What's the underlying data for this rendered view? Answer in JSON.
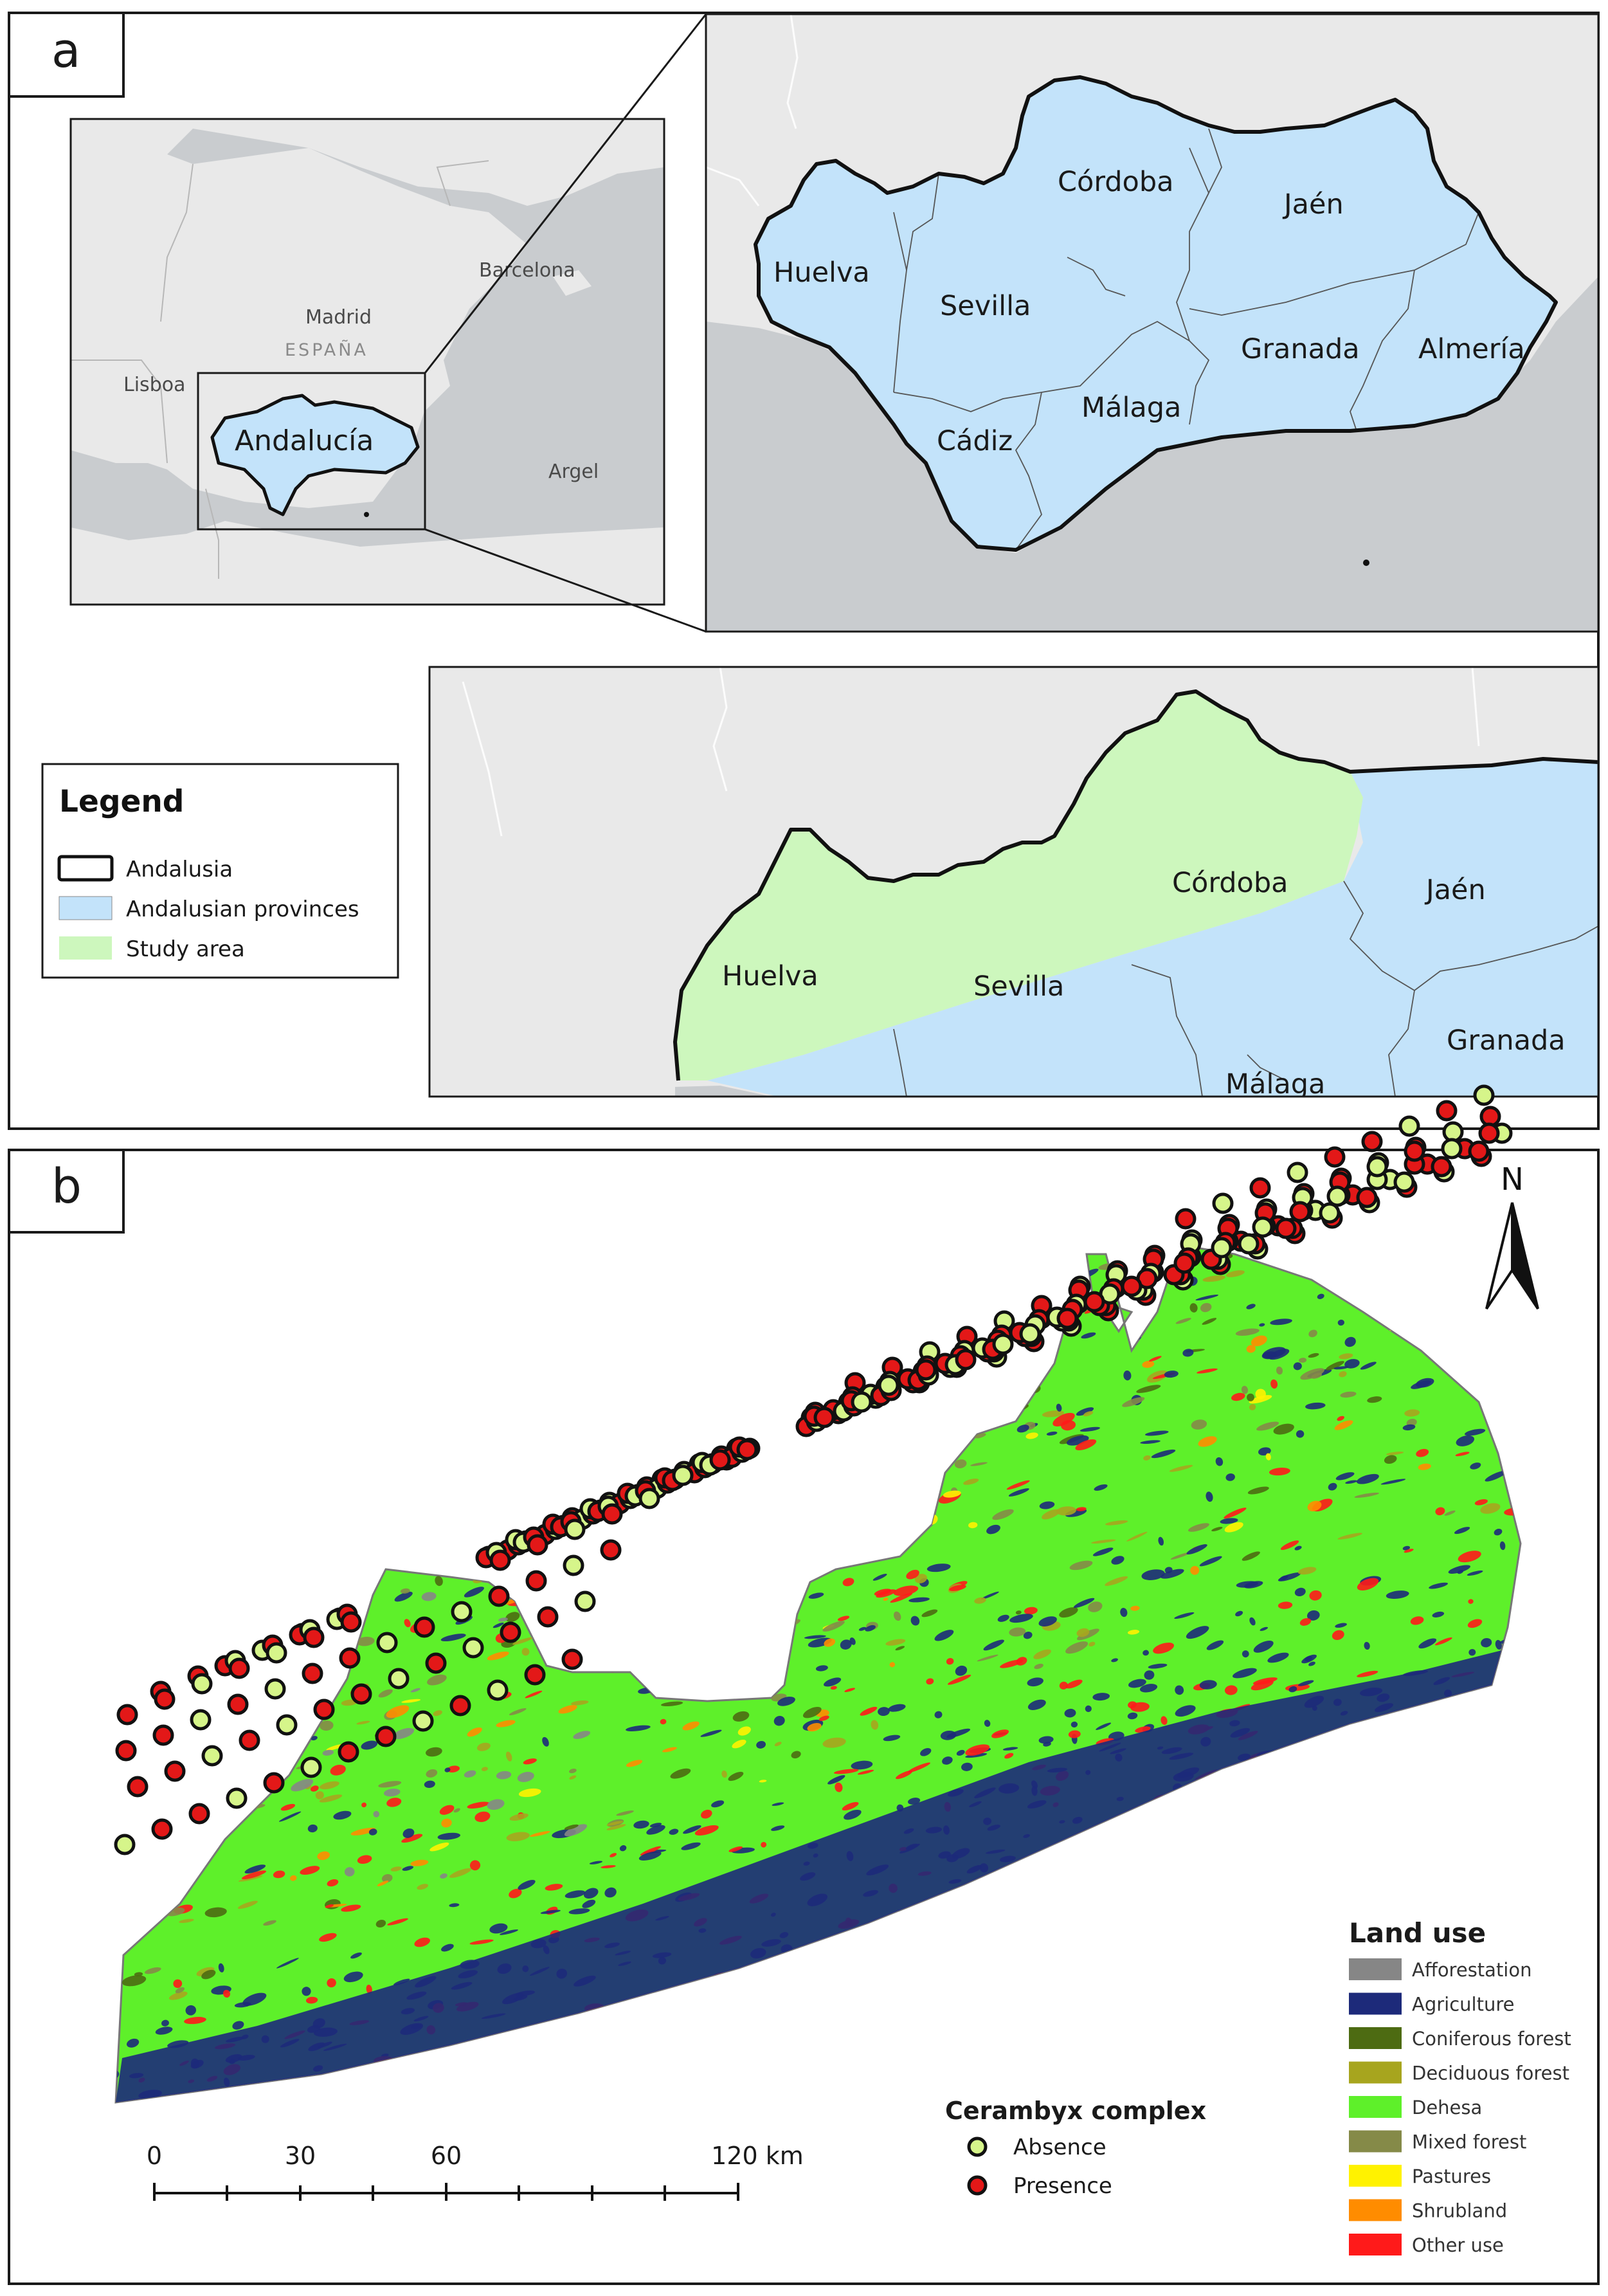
{
  "panel_a": {
    "tag": "a",
    "overview": {
      "cities": [
        "Barcelona",
        "Madrid",
        "ESPAÑA",
        "Lisboa",
        "Argel"
      ],
      "region_label": "Andalucía"
    },
    "provinces_map": {
      "provinces": [
        "Córdoba",
        "Jaén",
        "Huelva",
        "Sevilla",
        "Granada",
        "Almería",
        "Málaga",
        "Cádiz"
      ]
    },
    "study_map": {
      "labels": [
        "Córdoba",
        "Jaén",
        "Huelva",
        "Sevilla",
        "Granada",
        "Málaga"
      ]
    },
    "legend": {
      "title": "Legend",
      "items": [
        {
          "label": "Andalusia",
          "swatch": "outline"
        },
        {
          "label": "Andalusian provinces",
          "color": "#c3e3fa"
        },
        {
          "label": "Study area",
          "color": "#cdf7bd"
        }
      ]
    }
  },
  "panel_b": {
    "tag": "b",
    "north_label": "N",
    "land_use_legend": {
      "title": "Land use",
      "items": [
        {
          "label": "Afforestation",
          "color": "#868686"
        },
        {
          "label": "Agriculture",
          "color": "#1d2a7a"
        },
        {
          "label": "Coniferous forest",
          "color": "#4d6b12"
        },
        {
          "label": "Deciduous forest",
          "color": "#a7a51e"
        },
        {
          "label": "Dehesa",
          "color": "#5ef02a"
        },
        {
          "label": "Mixed forest",
          "color": "#858a48"
        },
        {
          "label": "Pastures",
          "color": "#fff200"
        },
        {
          "label": "Shrubland",
          "color": "#ff8c00"
        },
        {
          "label": "Other use",
          "color": "#ff1a1a"
        }
      ]
    },
    "species_legend": {
      "title": "Cerambyx complex",
      "items": [
        {
          "label": "Absence",
          "color": "#d6f58a"
        },
        {
          "label": "Presence",
          "color": "#e31818"
        }
      ]
    },
    "scale_bar": {
      "ticks": [
        "0",
        "30",
        "60",
        "120 km"
      ]
    }
  }
}
